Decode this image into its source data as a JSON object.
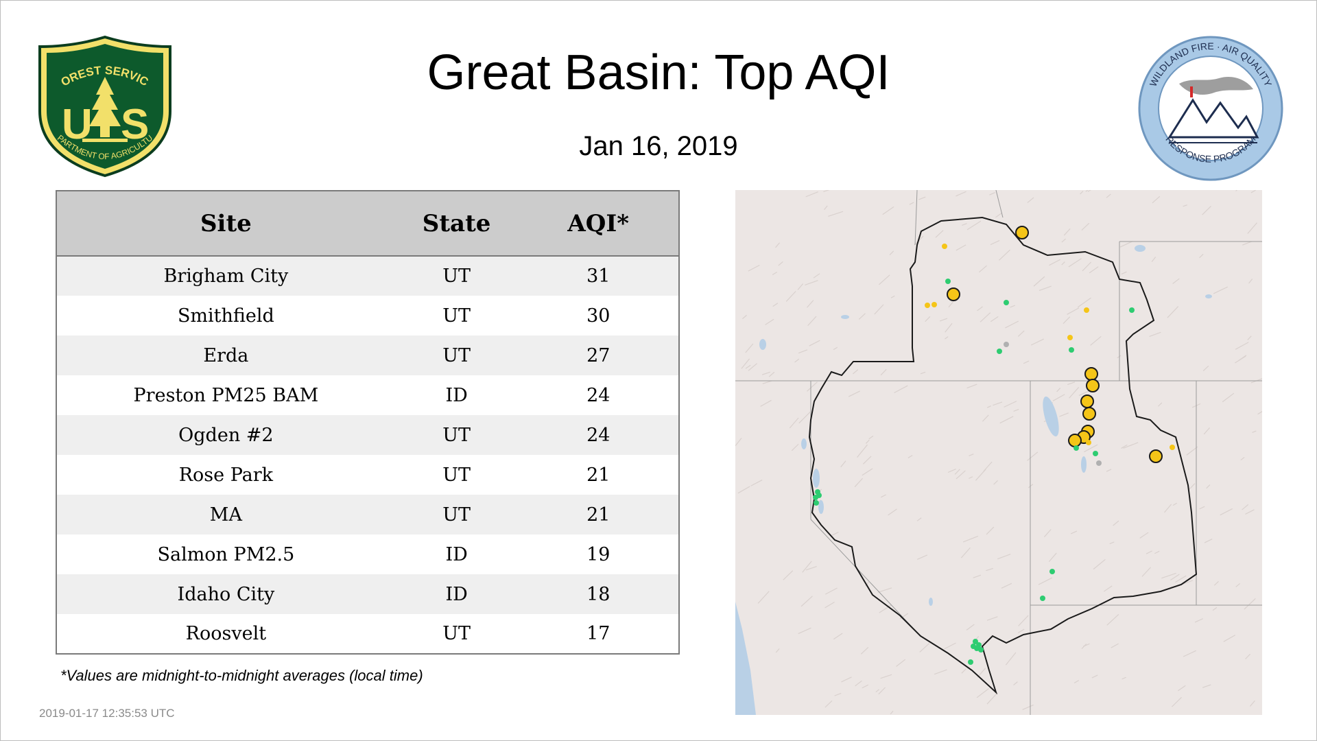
{
  "header": {
    "title": "Great Basin: Top AQI",
    "date": "Jan 16, 2019"
  },
  "logos": {
    "forest_service": {
      "icon": "forest-service-shield-icon",
      "top_text": "FOREST SERVICE",
      "bottom_text": "DEPARTMENT OF AGRICULTURE",
      "letters": [
        "U",
        "S"
      ]
    },
    "wildland_fire": {
      "icon": "wildland-fire-air-quality-seal-icon",
      "top_text": "WILDLAND FIRE · AIR QUALITY",
      "bottom_text": "RESPONSE PROGRAM"
    }
  },
  "table": {
    "columns": [
      "Site",
      "State",
      "AQI*"
    ],
    "rows": [
      {
        "site": "Brigham City",
        "state": "UT",
        "aqi": "31"
      },
      {
        "site": "Smithfield",
        "state": "UT",
        "aqi": "30"
      },
      {
        "site": "Erda",
        "state": "UT",
        "aqi": "27"
      },
      {
        "site": "Preston PM25 BAM",
        "state": "ID",
        "aqi": "24"
      },
      {
        "site": "Ogden #2",
        "state": "UT",
        "aqi": "24"
      },
      {
        "site": "Rose Park",
        "state": "UT",
        "aqi": "21"
      },
      {
        "site": "MA",
        "state": "UT",
        "aqi": "21"
      },
      {
        "site": "Salmon PM2.5",
        "state": "ID",
        "aqi": "19"
      },
      {
        "site": "Idaho City",
        "state": "ID",
        "aqi": "18"
      },
      {
        "site": "Roosvelt",
        "state": "UT",
        "aqi": "17"
      }
    ]
  },
  "footnote": "*Values are midnight-to-midnight averages (local time)",
  "timestamp": "2019-01-17 12:35:53 UTC",
  "map": {
    "colors": {
      "terrain": "#ece6e4",
      "water": "#b9d0e6",
      "state_border": "#9a9a9a",
      "region_border": "#1a1a1a",
      "aqi_good": "#2ecc71",
      "aqi_moderate": "#f5c518",
      "no_data": "#b0b0b0"
    }
  }
}
